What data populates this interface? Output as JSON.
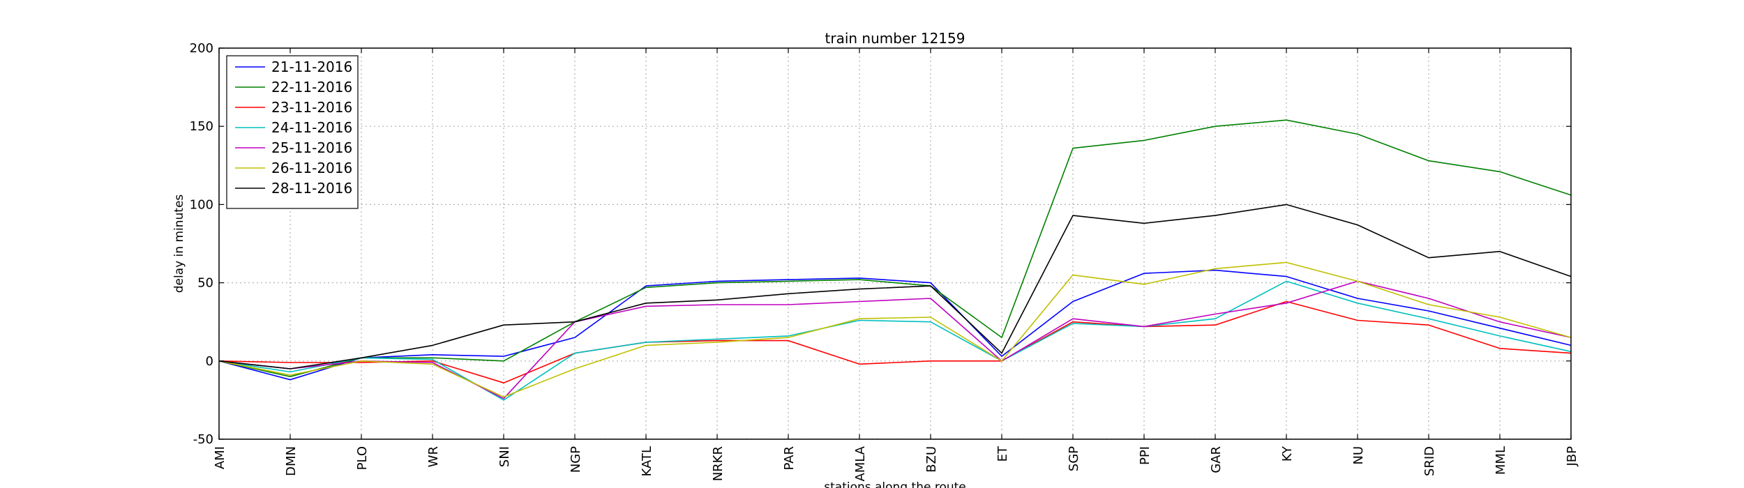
{
  "chart_data": {
    "type": "line",
    "title": "train number 12159",
    "xlabel": "stations along the route",
    "ylabel": "delay in minutes",
    "categories": [
      "AMI",
      "DMN",
      "PLO",
      "WR",
      "SNI",
      "NGP",
      "KATL",
      "NRKR",
      "PAR",
      "AMLA",
      "BZU",
      "ET",
      "SGP",
      "PPI",
      "GAR",
      "KY",
      "NU",
      "SRID",
      "MML",
      "JBP"
    ],
    "ylim": [
      -50,
      200
    ],
    "yticks": [
      -50,
      0,
      50,
      100,
      150,
      200
    ],
    "grid": true,
    "legend_position": "top-left",
    "series": [
      {
        "name": "21-11-2016",
        "color": "#0000ff",
        "values": [
          0,
          -12,
          2,
          4,
          3,
          15,
          48,
          51,
          52,
          53,
          50,
          3,
          38,
          56,
          58,
          54,
          40,
          32,
          21,
          10
        ]
      },
      {
        "name": "22-11-2016",
        "color": "#008000",
        "values": [
          0,
          -10,
          2,
          2,
          0,
          25,
          47,
          50,
          51,
          52,
          48,
          15,
          136,
          141,
          150,
          154,
          145,
          128,
          121,
          106
        ]
      },
      {
        "name": "23-11-2016",
        "color": "#ff0000",
        "values": [
          0,
          -1,
          -1,
          0,
          -14,
          5,
          12,
          13,
          13,
          -2,
          0,
          0,
          25,
          22,
          23,
          38,
          26,
          23,
          8,
          5
        ]
      },
      {
        "name": "24-11-2016",
        "color": "#00bfbf",
        "values": [
          0,
          -7,
          2,
          1,
          -25,
          5,
          12,
          14,
          16,
          26,
          25,
          0,
          24,
          22,
          27,
          51,
          37,
          27,
          16,
          6
        ]
      },
      {
        "name": "25-11-2016",
        "color": "#bf00bf",
        "values": [
          0,
          -5,
          0,
          -1,
          -24,
          25,
          35,
          36,
          36,
          38,
          40,
          0,
          27,
          22,
          30,
          37,
          51,
          40,
          25,
          15
        ]
      },
      {
        "name": "26-11-2016",
        "color": "#bfbf00",
        "values": [
          0,
          -9,
          0,
          -2,
          -23,
          -5,
          10,
          12,
          15,
          27,
          28,
          0,
          55,
          49,
          59,
          63,
          51,
          36,
          28,
          15
        ]
      },
      {
        "name": "28-11-2016",
        "color": "#000000",
        "values": [
          0,
          -5,
          2,
          10,
          23,
          25,
          37,
          39,
          43,
          46,
          48,
          5,
          93,
          88,
          93,
          100,
          87,
          66,
          70,
          54
        ]
      }
    ]
  }
}
